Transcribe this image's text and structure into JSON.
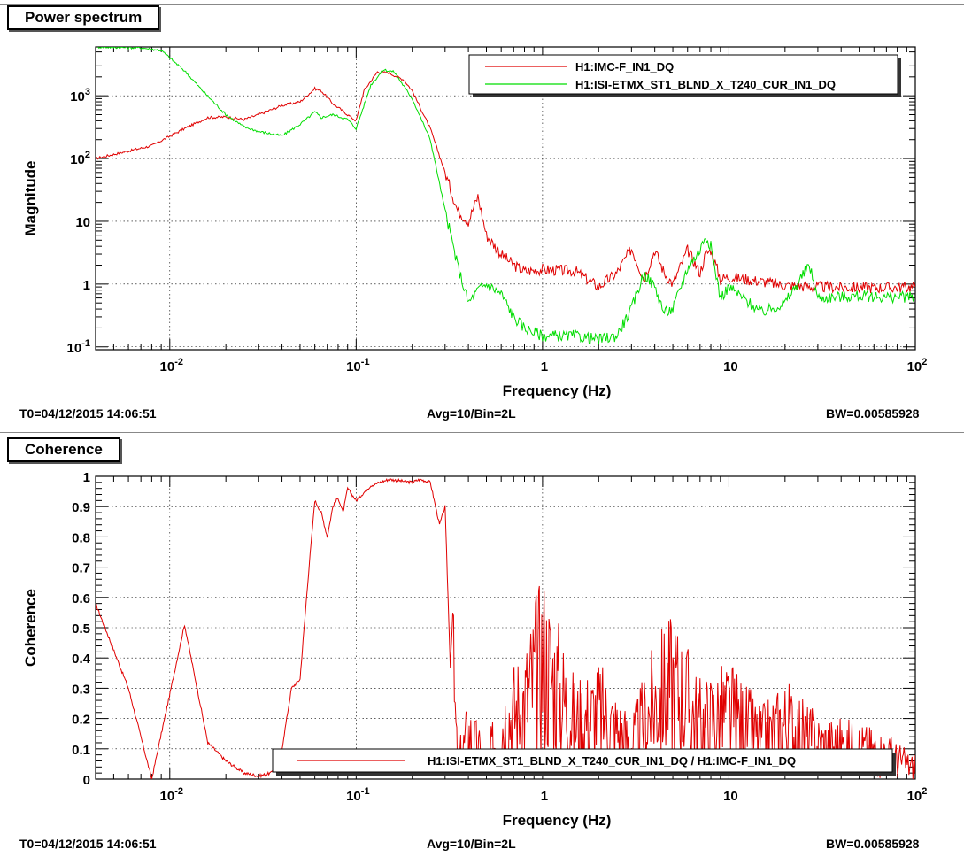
{
  "panels": [
    {
      "title": "Power spectrum",
      "footer": {
        "t0": "T0=04/12/2015 14:06:51",
        "avg": "Avg=10/Bin=2L",
        "bw": "BW=0.00585928"
      }
    },
    {
      "title": "Coherence",
      "footer": {
        "t0": "T0=04/12/2015 14:06:51",
        "avg": "Avg=10/Bin=2L",
        "bw": "BW=0.00585928"
      }
    }
  ],
  "chart_data": [
    {
      "type": "line",
      "title": "Power spectrum",
      "xlabel": "Frequency (Hz)",
      "ylabel": "Magnitude",
      "xscale": "log",
      "yscale": "log",
      "xlim": [
        0.004,
        100
      ],
      "ylim": [
        0.09,
        6000
      ],
      "grid": true,
      "legend_position": "top-right",
      "x_ticks": [
        {
          "value": 0.01,
          "base": "10",
          "exp": "-2"
        },
        {
          "value": 0.1,
          "base": "10",
          "exp": "-1"
        },
        {
          "value": 1,
          "base": "1",
          "exp": ""
        },
        {
          "value": 10,
          "base": "10",
          "exp": ""
        },
        {
          "value": 100,
          "base": "10",
          "exp": "2"
        }
      ],
      "y_ticks": [
        {
          "value": 0.1,
          "base": "10",
          "exp": "-1"
        },
        {
          "value": 1,
          "base": "1",
          "exp": ""
        },
        {
          "value": 10,
          "base": "10",
          "exp": ""
        },
        {
          "value": 100,
          "base": "10",
          "exp": "2"
        },
        {
          "value": 1000,
          "base": "10",
          "exp": "3"
        }
      ],
      "series": [
        {
          "name": "H1:IMC-F_IN1_DQ",
          "color": "#e00000",
          "x": [
            0.004,
            0.008,
            0.012,
            0.016,
            0.02,
            0.025,
            0.03,
            0.04,
            0.05,
            0.06,
            0.065,
            0.075,
            0.09,
            0.1,
            0.11,
            0.13,
            0.15,
            0.18,
            0.2,
            0.25,
            0.3,
            0.35,
            0.4,
            0.45,
            0.5,
            0.6,
            0.7,
            0.8,
            1,
            1.5,
            2,
            2.5,
            3,
            3.5,
            4,
            4.5,
            5,
            6,
            7,
            7.5,
            8,
            9,
            10,
            15,
            20,
            30,
            50,
            70,
            100
          ],
          "y": [
            100,
            160,
            300,
            450,
            460,
            420,
            500,
            700,
            800,
            1300,
            1200,
            750,
            500,
            400,
            1200,
            2400,
            2300,
            1800,
            1200,
            300,
            60,
            15,
            10,
            25,
            6,
            3,
            2,
            1.6,
            1.7,
            1.6,
            0.9,
            1.5,
            3.7,
            1.2,
            3.5,
            1.5,
            1.0,
            3.5,
            1.5,
            3.0,
            3.5,
            1.2,
            1.3,
            1.1,
            0.95,
            0.9,
            0.88,
            0.88,
            0.9
          ]
        },
        {
          "name": "H1:ISI-ETMX_ST1_BLND_X_T240_CUR_IN1_DQ",
          "color": "#00dd00",
          "x": [
            0.004,
            0.007,
            0.009,
            0.012,
            0.015,
            0.02,
            0.025,
            0.03,
            0.04,
            0.05,
            0.06,
            0.065,
            0.075,
            0.09,
            0.1,
            0.12,
            0.14,
            0.16,
            0.2,
            0.25,
            0.3,
            0.35,
            0.4,
            0.45,
            0.5,
            0.6,
            0.7,
            0.8,
            1,
            1.5,
            2,
            2.5,
            3,
            3.5,
            4,
            4.5,
            5,
            6,
            7,
            7.5,
            8,
            9,
            10,
            15,
            20,
            27,
            30,
            50,
            70,
            100
          ],
          "y": [
            6000,
            5800,
            5300,
            2500,
            1200,
            500,
            320,
            270,
            230,
            350,
            550,
            450,
            500,
            420,
            300,
            1500,
            2600,
            2400,
            900,
            200,
            15,
            2,
            0.5,
            0.8,
            1.0,
            0.7,
            0.3,
            0.2,
            0.15,
            0.15,
            0.13,
            0.15,
            0.4,
            1.5,
            0.9,
            0.35,
            0.4,
            1.8,
            3.5,
            6.0,
            4.0,
            0.6,
            0.9,
            0.35,
            0.5,
            2.0,
            0.6,
            0.65,
            0.62,
            0.62
          ]
        }
      ]
    },
    {
      "type": "line",
      "title": "Coherence",
      "xlabel": "Frequency (Hz)",
      "ylabel": "Coherence",
      "xscale": "log",
      "yscale": "linear",
      "xlim": [
        0.004,
        100
      ],
      "ylim": [
        0,
        1
      ],
      "grid": true,
      "legend_position": "bottom-center",
      "x_ticks": [
        {
          "value": 0.01,
          "base": "10",
          "exp": "-2"
        },
        {
          "value": 0.1,
          "base": "10",
          "exp": "-1"
        },
        {
          "value": 1,
          "base": "1",
          "exp": ""
        },
        {
          "value": 10,
          "base": "10",
          "exp": ""
        },
        {
          "value": 100,
          "base": "10",
          "exp": "2"
        }
      ],
      "y_ticks": [
        {
          "value": 0,
          "base": "0",
          "exp": ""
        },
        {
          "value": 0.1,
          "base": "0.1",
          "exp": ""
        },
        {
          "value": 0.2,
          "base": "0.2",
          "exp": ""
        },
        {
          "value": 0.3,
          "base": "0.3",
          "exp": ""
        },
        {
          "value": 0.4,
          "base": "0.4",
          "exp": ""
        },
        {
          "value": 0.5,
          "base": "0.5",
          "exp": ""
        },
        {
          "value": 0.6,
          "base": "0.6",
          "exp": ""
        },
        {
          "value": 0.7,
          "base": "0.7",
          "exp": ""
        },
        {
          "value": 0.8,
          "base": "0.8",
          "exp": ""
        },
        {
          "value": 0.9,
          "base": "0.9",
          "exp": ""
        },
        {
          "value": 1,
          "base": "1",
          "exp": ""
        }
      ],
      "series": [
        {
          "name": "H1:ISI-ETMX_ST1_BLND_X_T240_CUR_IN1_DQ / H1:IMC-F_IN1_DQ",
          "color": "#e00000",
          "x": [
            0.004,
            0.006,
            0.008,
            0.012,
            0.016,
            0.02,
            0.025,
            0.03,
            0.035,
            0.04,
            0.045,
            0.05,
            0.055,
            0.06,
            0.065,
            0.07,
            0.075,
            0.08,
            0.085,
            0.09,
            0.1,
            0.12,
            0.15,
            0.2,
            0.22,
            0.25,
            0.28,
            0.3,
            0.32,
            0.33,
            0.35,
            0.4,
            0.5,
            0.6,
            0.8,
            1,
            1.5,
            2,
            3,
            4,
            5,
            7,
            10,
            15,
            20,
            30,
            50,
            70,
            100
          ],
          "y": [
            0.58,
            0.3,
            0.0,
            0.51,
            0.12,
            0.06,
            0.02,
            0.01,
            0.02,
            0.1,
            0.3,
            0.33,
            0.65,
            0.92,
            0.88,
            0.8,
            0.9,
            0.93,
            0.88,
            0.96,
            0.92,
            0.97,
            0.99,
            0.98,
            0.99,
            0.98,
            0.84,
            0.9,
            0.37,
            0.55,
            0.1,
            0.25,
            0.1,
            0.3,
            0.4,
            0.62,
            0.3,
            0.35,
            0.2,
            0.4,
            0.5,
            0.3,
            0.35,
            0.22,
            0.3,
            0.2,
            0.18,
            0.15,
            0.08
          ]
        }
      ]
    }
  ]
}
